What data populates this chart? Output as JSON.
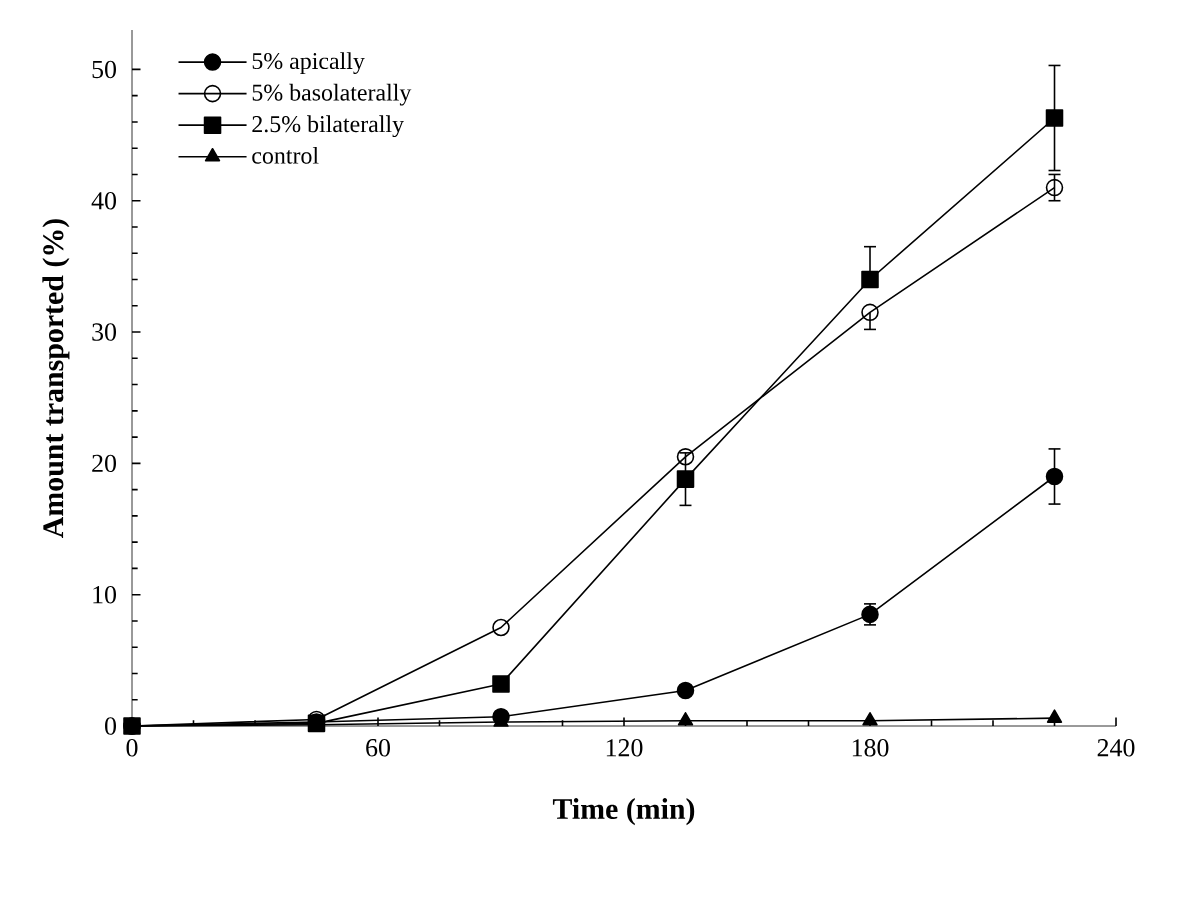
{
  "chart_data": {
    "type": "line",
    "xlabel": "Time  (min)",
    "ylabel": "Amount transported (%)",
    "x": [
      0,
      45,
      90,
      135,
      180,
      225
    ],
    "series": [
      {
        "name": "5% apically",
        "color": "#000000",
        "marker": "circle",
        "values": [
          0,
          0.3,
          0.7,
          2.7,
          8.5,
          19
        ],
        "errors": [
          null,
          null,
          null,
          null,
          0.8,
          2.1
        ]
      },
      {
        "name": "5% basolaterally",
        "color": "#000000",
        "marker": "open circle",
        "values": [
          0,
          0.5,
          7.5,
          20.5,
          31.5,
          41
        ],
        "errors": [
          null,
          null,
          null,
          null,
          [
            30.2,
            31.5
          ],
          1
        ]
      },
      {
        "name": "2.5% bilaterally",
        "color": "#000000",
        "marker": "square",
        "values": [
          0,
          0.2,
          3.2,
          18.8,
          34,
          46.3
        ],
        "errors": [
          null,
          null,
          null,
          2,
          [
            34,
            36.5
          ],
          4
        ]
      },
      {
        "name": "control",
        "color": "#000000",
        "marker": "triangle",
        "values": [
          0,
          0.1,
          0.3,
          0.4,
          0.4,
          0.6
        ]
      }
    ],
    "xlim": [
      0,
      240
    ],
    "ylim": [
      0,
      53
    ],
    "xticks": [
      0,
      60,
      120,
      180,
      240
    ],
    "yticks": [
      0,
      10,
      20,
      30,
      40,
      50
    ],
    "legend": "top left",
    "grid": false,
    "line_style": "solid"
  }
}
